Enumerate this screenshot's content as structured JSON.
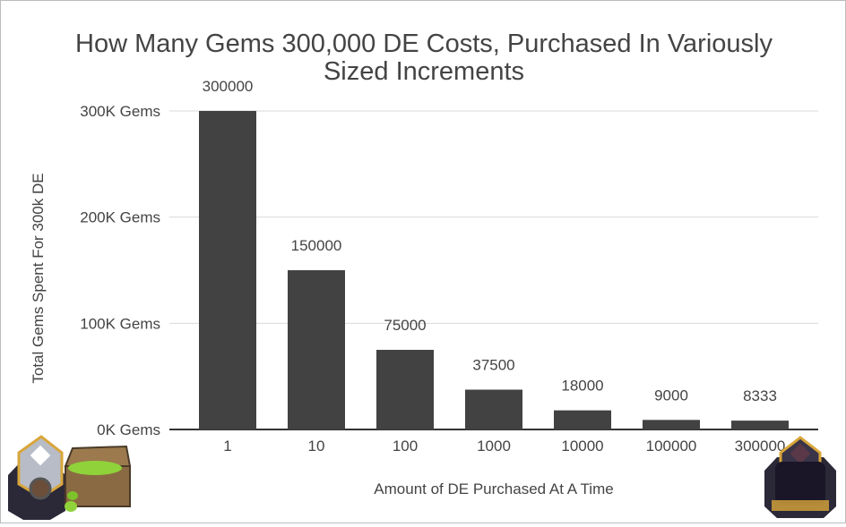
{
  "chart_data": {
    "type": "bar",
    "title": "How Many Gems 300,000 DE Costs, Purchased In Variously Sized Increments",
    "title_lines": [
      "How Many Gems 300,000 DE Costs, Purchased In Variously",
      "Sized Increments"
    ],
    "xlabel": "Amount of DE Purchased At A Time",
    "ylabel": "Total Gems Spent For 300k DE",
    "categories": [
      "1",
      "10",
      "100",
      "1000",
      "10000",
      "100000",
      "300000"
    ],
    "values": [
      300000,
      150000,
      75000,
      37500,
      18000,
      9000,
      8333
    ],
    "data_labels": [
      "300000",
      "150000",
      "75000",
      "37500",
      "18000",
      "9000",
      "8333"
    ],
    "ylim": [
      0,
      300000
    ],
    "yticks": [
      0,
      100000,
      200000,
      300000
    ],
    "ytick_labels": [
      "0K Gems",
      "100K Gems",
      "200K Gems",
      "300K Gems"
    ],
    "grid": true,
    "bar_color": "#424242",
    "gridline_color": "#d9d9d9"
  },
  "decorations": {
    "left_image": "gem-chest-and-storage-icon",
    "right_image": "dark-elixir-storage-icon"
  }
}
